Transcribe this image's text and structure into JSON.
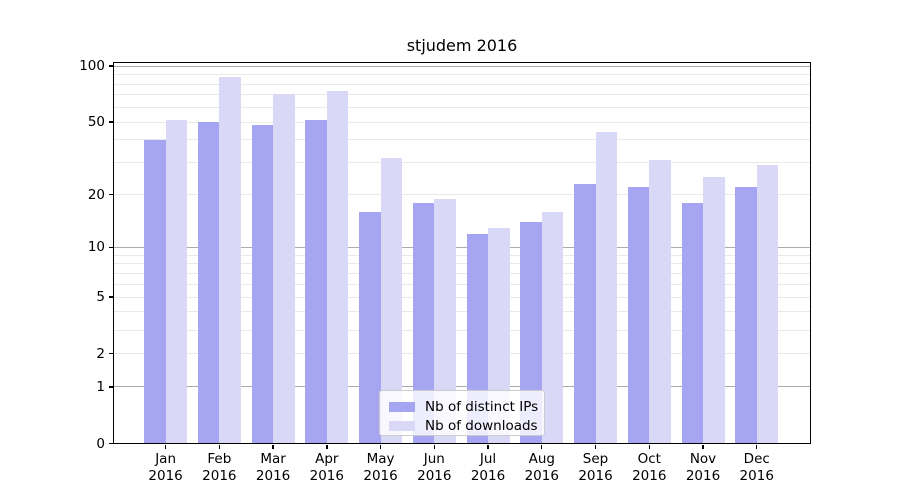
{
  "title": "stjudem 2016",
  "legend": {
    "items": [
      {
        "label": "Nb of distinct IPs",
        "color": "#a5a5f2"
      },
      {
        "label": "Nb of downloads",
        "color": "#d9d9f7"
      }
    ],
    "position": "lower center"
  },
  "chart_data": {
    "type": "bar",
    "title": "stjudem 2016",
    "categories": [
      "Jan",
      "Feb",
      "Mar",
      "Apr",
      "May",
      "Jun",
      "Jul",
      "Aug",
      "Sep",
      "Oct",
      "Nov",
      "Dec"
    ],
    "category_year": "2016",
    "series": [
      {
        "name": "Nb of distinct IPs",
        "color": "#a5a5f2",
        "values": [
          40,
          50,
          48,
          51,
          16,
          18,
          12,
          14,
          23,
          22,
          18,
          22
        ]
      },
      {
        "name": "Nb of downloads",
        "color": "#d9d9f7",
        "values": [
          51,
          87,
          71,
          74,
          32,
          19,
          13,
          16,
          44,
          31,
          25,
          29
        ]
      }
    ],
    "xlabel": "",
    "ylabel": "",
    "y_scale": "log1p",
    "ylim": [
      0,
      104
    ],
    "y_ticks": [
      0,
      1,
      2,
      5,
      10,
      20,
      50,
      100
    ],
    "y_tick_labels": [
      "0",
      "1",
      "2",
      "5",
      "10",
      "20",
      "50",
      "100"
    ],
    "y_gridlines_major": [
      1,
      10,
      100
    ],
    "y_gridlines_minor": [
      2,
      3,
      4,
      5,
      6,
      7,
      8,
      9,
      20,
      30,
      40,
      50,
      60,
      70,
      80,
      90
    ],
    "grid": true,
    "legend_position": "lower center"
  },
  "colors": {
    "background": "#ffffff",
    "bar_distinct_ips": "#a5a5f2",
    "bar_downloads": "#d9d9f7",
    "grid_major": "#ababab",
    "grid_minor": "#e9e9e9",
    "axis": "#000000",
    "legend_border": "#cccccc"
  }
}
